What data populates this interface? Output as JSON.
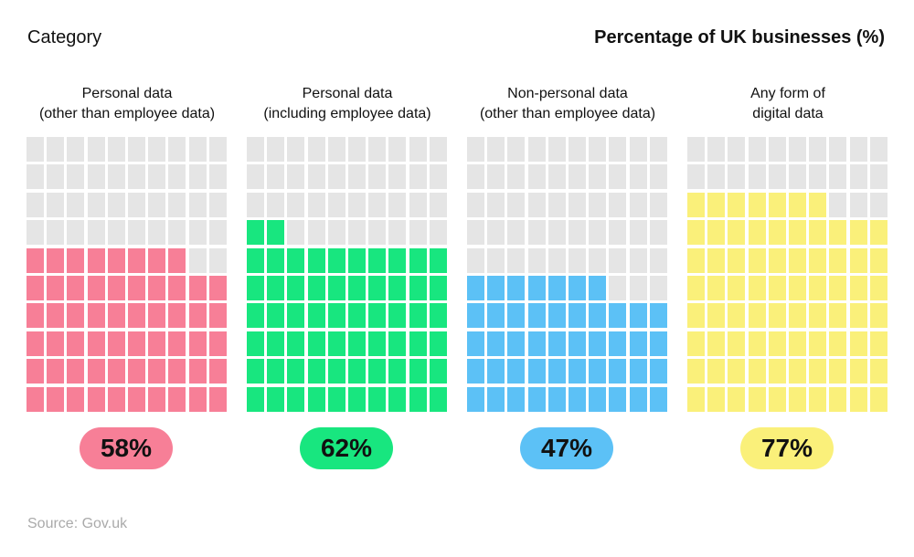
{
  "header": {
    "left": "Category",
    "right": "Percentage of UK businesses (%)"
  },
  "chart_data": {
    "type": "waffle",
    "grid": {
      "rows": 10,
      "cols": 10
    },
    "empty_color": "#e5e5e5",
    "panels": [
      {
        "label_lines": [
          "Personal data",
          "(other than employee data)"
        ],
        "value": 58,
        "display": "58%",
        "color": "#f77f97"
      },
      {
        "label_lines": [
          "Personal data",
          "(including employee data)"
        ],
        "value": 62,
        "display": "62%",
        "color": "#18e67f"
      },
      {
        "label_lines": [
          "Non-personal data",
          "(other than employee data)"
        ],
        "value": 47,
        "display": "47%",
        "color": "#5cc1f6"
      },
      {
        "label_lines": [
          "Any form of",
          "digital data"
        ],
        "value": 77,
        "display": "77%",
        "color": "#faf07a"
      }
    ]
  },
  "source": "Source: Gov.uk"
}
